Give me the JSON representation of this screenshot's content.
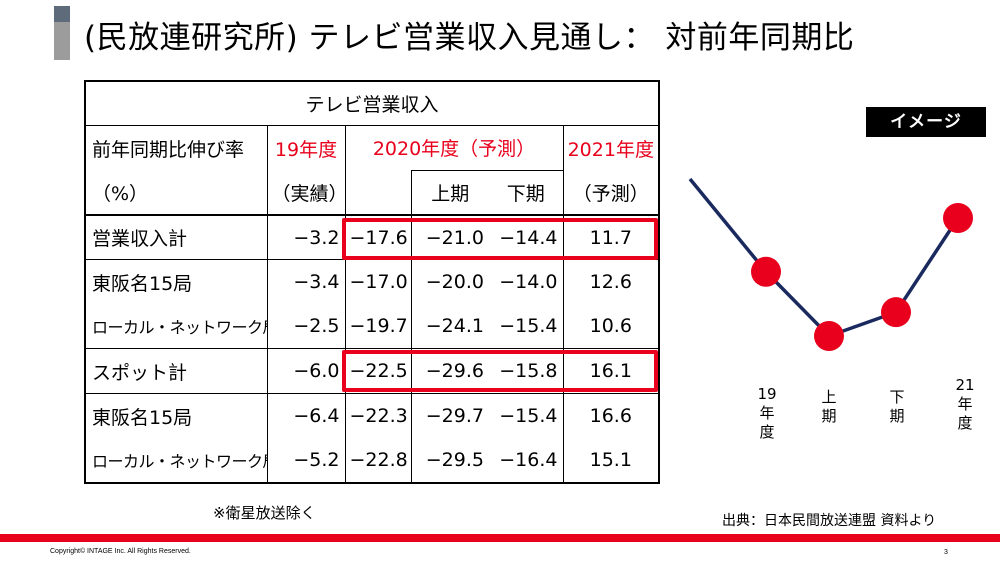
{
  "title": "(民放連研究所) テレビ営業収入見通し： 対前年同期比",
  "table": {
    "caption": "テレビ営業収入",
    "metric_label": "前年同期比伸び率",
    "unit_label": "（%）",
    "col_19": "19年度",
    "col_19_sub": "（実績）",
    "col_2020": "2020年度（予測）",
    "col_2020_h1": "上期",
    "col_2020_h2": "下期",
    "col_2021": "2021年度",
    "col_2021_sub": "（予測）",
    "rows": [
      {
        "label": "営業収入計",
        "v19": "−3.2",
        "v20": "−17.6",
        "h1": "−21.0",
        "h2": "−14.4",
        "v21": "11.7"
      },
      {
        "label": "東阪名15局",
        "v19": "−3.4",
        "v20": "−17.0",
        "h1": "−20.0",
        "h2": "−14.0",
        "v21": "12.6"
      },
      {
        "label": "ローカル・ネットワーク局",
        "v19": "−2.5",
        "v20": "−19.7",
        "h1": "−24.1",
        "h2": "−15.4",
        "v21": "10.6"
      },
      {
        "label": "スポット計",
        "v19": "−6.0",
        "v20": "−22.5",
        "h1": "−29.6",
        "h2": "−15.8",
        "v21": "16.1"
      },
      {
        "label": "東阪名15局",
        "v19": "−6.4",
        "v20": "−22.3",
        "h1": "−29.7",
        "h2": "−15.4",
        "v21": "16.6"
      },
      {
        "label": "ローカル・ネットワーク局",
        "v19": "−5.2",
        "v20": "−22.8",
        "h1": "−29.5",
        "h2": "−16.4",
        "v21": "15.1"
      }
    ]
  },
  "note": "※衛星放送除く",
  "source": "出典：日本民間放送連盟 資料より",
  "image_badge": "イメージ",
  "chart": {
    "points": [
      -3.2,
      -21.0,
      -14.4,
      11.7
    ],
    "labels": [
      [
        "19",
        "年",
        "度"
      ],
      [
        "上",
        "期"
      ],
      [
        "下",
        "期"
      ],
      [
        "21",
        "年",
        "度"
      ]
    ],
    "line_color": "#1a2a5e",
    "marker_color": "#e8001c"
  },
  "footer": {
    "copyright": "Copyright© INTAGE Inc. All Rights Reserved.",
    "page": "3"
  },
  "colors": {
    "accent": "#e8001c"
  }
}
